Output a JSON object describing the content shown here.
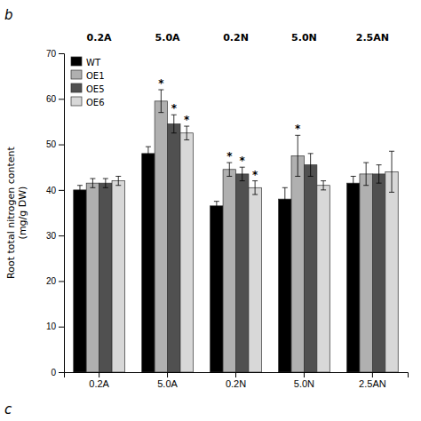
{
  "chart_data": {
    "type": "bar",
    "ylabel": "Root total nitrogen content\n(mg/g DW)",
    "categories": [
      "0.2A",
      "5.0A",
      "0.2N",
      "5.0N",
      "2.5AN"
    ],
    "top_labels": [
      "0.2A",
      "5.0A",
      "0.2N",
      "5.0N",
      "2.5AN"
    ],
    "panel_label": "b",
    "bottom_panel_label": "c",
    "series": [
      {
        "name": "WT",
        "color": "#000000",
        "values": [
          40.0,
          48.0,
          36.5,
          38.0,
          41.5
        ],
        "errors": [
          1.0,
          1.5,
          1.0,
          2.5,
          1.5
        ]
      },
      {
        "name": "OE1",
        "color": "#b0b0b0",
        "values": [
          41.5,
          59.5,
          44.5,
          47.5,
          43.5
        ],
        "errors": [
          1.0,
          2.5,
          1.5,
          4.5,
          2.5
        ]
      },
      {
        "name": "OE5",
        "color": "#505050",
        "values": [
          41.5,
          54.5,
          43.5,
          45.5,
          43.5
        ],
        "errors": [
          1.0,
          2.0,
          1.5,
          2.5,
          2.0
        ]
      },
      {
        "name": "OE6",
        "color": "#d8d8d8",
        "values": [
          42.0,
          52.5,
          40.5,
          41.0,
          44.0
        ],
        "errors": [
          1.0,
          1.5,
          1.5,
          1.0,
          4.5
        ]
      }
    ],
    "annotations": [
      {
        "text": "*",
        "category": "5.0A",
        "series": "OE1"
      },
      {
        "text": "*",
        "category": "5.0A",
        "series": "OE5"
      },
      {
        "text": "*",
        "category": "5.0A",
        "series": "OE6"
      },
      {
        "text": "*",
        "category": "0.2N",
        "series": "OE1"
      },
      {
        "text": "*",
        "category": "0.2N",
        "series": "OE5"
      },
      {
        "text": "*",
        "category": "0.2N",
        "series": "OE6"
      },
      {
        "text": "*",
        "category": "5.0N",
        "series": "OE1"
      }
    ],
    "ylim": [
      0,
      70
    ],
    "yticks": [
      0,
      10,
      20,
      30,
      40,
      50,
      60,
      70
    ],
    "grid": false,
    "legend": "upper left"
  }
}
